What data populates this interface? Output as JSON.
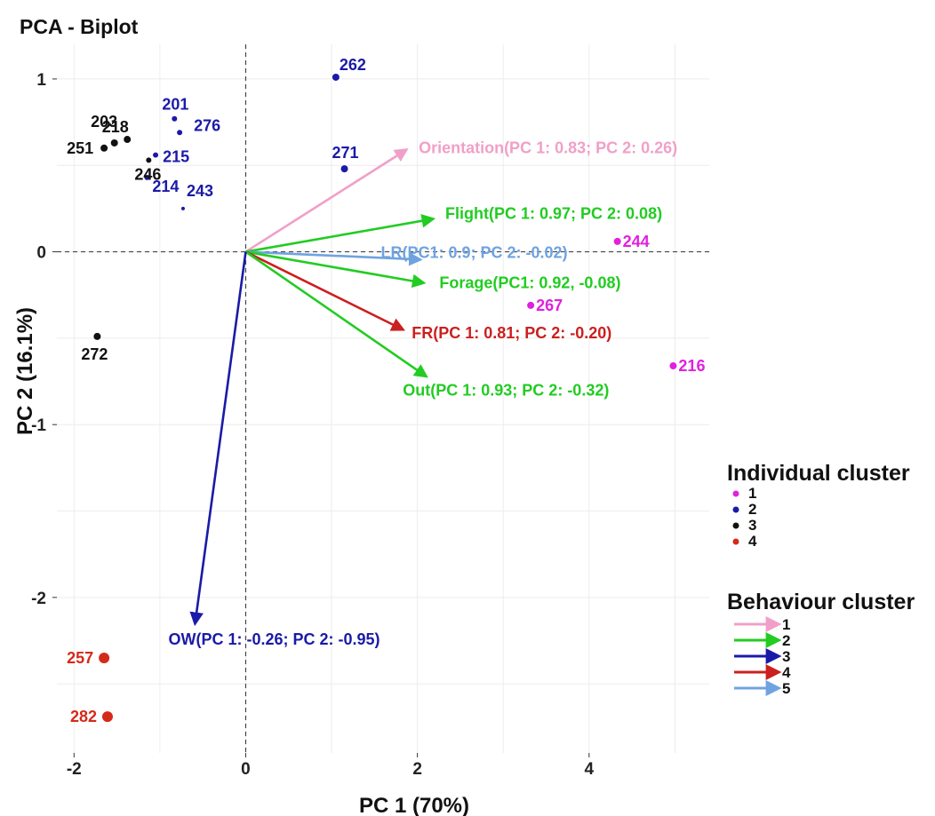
{
  "chart_data": {
    "type": "scatter",
    "title": "PCA - Biplot",
    "xlabel": "PC 1 (70%)",
    "ylabel": "PC 2 (16.1%)",
    "xlim": [
      -2.2,
      5.4
    ],
    "ylim": [
      -2.9,
      1.2
    ],
    "x_ticks": [
      -2,
      0,
      2,
      4
    ],
    "y_ticks": [
      1,
      0,
      -1,
      -2
    ],
    "grid": true,
    "reference_lines": {
      "x": 0,
      "y": 0,
      "style": "dashed"
    },
    "individual_cluster_colors": {
      "1": "#e020e0",
      "2": "#1a1aa8",
      "3": "#111111",
      "4": "#d42a1a"
    },
    "behaviour_cluster_colors": {
      "1": "#f0a0c8",
      "2": "#22cc22",
      "3": "#1a1aa8",
      "4": "#cc1f1f",
      "5": "#6fa3e0"
    },
    "points": [
      {
        "label": "262",
        "x": 1.05,
        "y": 1.01,
        "cluster": "2",
        "size": 4
      },
      {
        "label": "271",
        "x": 1.15,
        "y": 0.48,
        "cluster": "2",
        "size": 4
      },
      {
        "label": "201",
        "x": -0.83,
        "y": 0.77,
        "cluster": "2",
        "size": 3
      },
      {
        "label": "276",
        "x": -0.77,
        "y": 0.69,
        "cluster": "2",
        "size": 3
      },
      {
        "label": "203",
        "x": -1.38,
        "y": 0.65,
        "cluster": "3",
        "size": 4
      },
      {
        "label": "218",
        "x": -1.53,
        "y": 0.63,
        "cluster": "3",
        "size": 4
      },
      {
        "label": "251",
        "x": -1.65,
        "y": 0.6,
        "cluster": "3",
        "size": 4
      },
      {
        "label": "246",
        "x": -1.13,
        "y": 0.53,
        "cluster": "3",
        "size": 3
      },
      {
        "label": "215",
        "x": -1.05,
        "y": 0.56,
        "cluster": "2",
        "size": 3
      },
      {
        "label": "214",
        "x": -1.15,
        "y": 0.43,
        "cluster": "2",
        "size": 3
      },
      {
        "label": "243",
        "x": -0.73,
        "y": 0.25,
        "cluster": "2",
        "size": 2
      },
      {
        "label": "272",
        "x": -1.73,
        "y": -0.49,
        "cluster": "3",
        "size": 4
      },
      {
        "label": "244",
        "x": 4.33,
        "y": 0.06,
        "cluster": "1",
        "size": 4
      },
      {
        "label": "267",
        "x": 3.32,
        "y": -0.31,
        "cluster": "1",
        "size": 4
      },
      {
        "label": "216",
        "x": 4.98,
        "y": -0.66,
        "cluster": "1",
        "size": 4
      },
      {
        "label": "257",
        "x": -1.65,
        "y": -2.35,
        "cluster": "4",
        "size": 6
      },
      {
        "label": "282",
        "x": -1.61,
        "y": -2.69,
        "cluster": "4",
        "size": 6
      }
    ],
    "vectors": [
      {
        "label": "Orientation(PC 1: 0.83; PC 2: 0.26)",
        "x": 1.87,
        "y": 0.59,
        "cluster": "1"
      },
      {
        "label": "Flight(PC 1: 0.97; PC 2: 0.08)",
        "x": 2.18,
        "y": 0.19,
        "cluster": "2"
      },
      {
        "label": "LR(PC1: 0.9; PC 2: -0.02)",
        "x": 2.03,
        "y": -0.045,
        "cluster": "5"
      },
      {
        "label": "Forage(PC1: 0.92, -0.08)",
        "x": 2.07,
        "y": -0.18,
        "cluster": "2"
      },
      {
        "label": "FR(PC 1: 0.81; PC 2: -0.20)",
        "x": 1.83,
        "y": -0.45,
        "cluster": "4"
      },
      {
        "label": "Out(PC 1: 0.93; PC 2: -0.32)",
        "x": 2.1,
        "y": -0.72,
        "cluster": "2"
      },
      {
        "label": "OW(PC 1: -0.26; PC 2: -0.95)",
        "x": -0.59,
        "y": -2.15,
        "cluster": "3"
      }
    ],
    "legend": {
      "placement": "right",
      "individual": {
        "title": "Individual cluster",
        "items": [
          "1",
          "2",
          "3",
          "4"
        ]
      },
      "behaviour": {
        "title": "Behaviour cluster",
        "items": [
          "1",
          "2",
          "3",
          "4",
          "5"
        ]
      }
    }
  }
}
